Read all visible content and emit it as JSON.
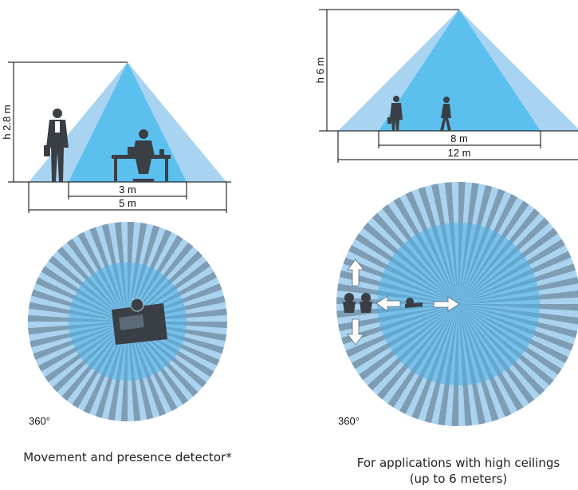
{
  "left_panel": {
    "height_label": "h 2.8 m",
    "inner_width_label": "3 m",
    "outer_width_label": "5 m",
    "angle_label": "360°",
    "caption": "Movement and presence detector*"
  },
  "right_panel": {
    "height_label": "h 6 m",
    "inner_width_label": "8 m",
    "outer_width_label": "12 m",
    "angle_label": "360°",
    "caption_line1": "For applications with high ceilings",
    "caption_line2": "(up to 6 meters)"
  },
  "colors": {
    "outer_zone": "#a8d4f2",
    "inner_zone": "#5cc0ee",
    "stripe_dark": "#7e9cb3",
    "stripe_light": "#a9d3ef",
    "silhouette": "#3a3f45",
    "line": "#000000"
  }
}
